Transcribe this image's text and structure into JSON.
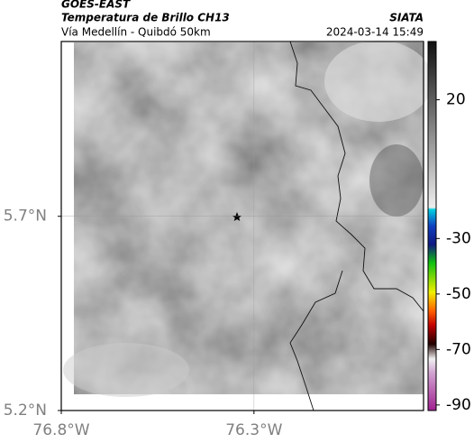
{
  "header": {
    "satellite": "GOES-EAST",
    "product": "Temperatura de Brillo CH13",
    "route": "Vía Medellín - Quibdó 50km",
    "source": "SIATA",
    "timestamp": "2024-03-14 15:49"
  },
  "map": {
    "xlim": [
      -76.8,
      -75.86
    ],
    "ylim": [
      5.2,
      6.15
    ],
    "xticks": [
      {
        "value": -76.8,
        "label": "76.8°W"
      },
      {
        "value": -76.3,
        "label": "76.3°W"
      }
    ],
    "yticks": [
      {
        "value": 5.2,
        "label": "5.2°N"
      },
      {
        "value": 5.7,
        "label": "5.7°N"
      }
    ],
    "grid": true
  },
  "colorbar": {
    "lim": [
      -92,
      41
    ],
    "ticks": [
      20,
      -30,
      -50,
      -70,
      -90
    ]
  }
}
